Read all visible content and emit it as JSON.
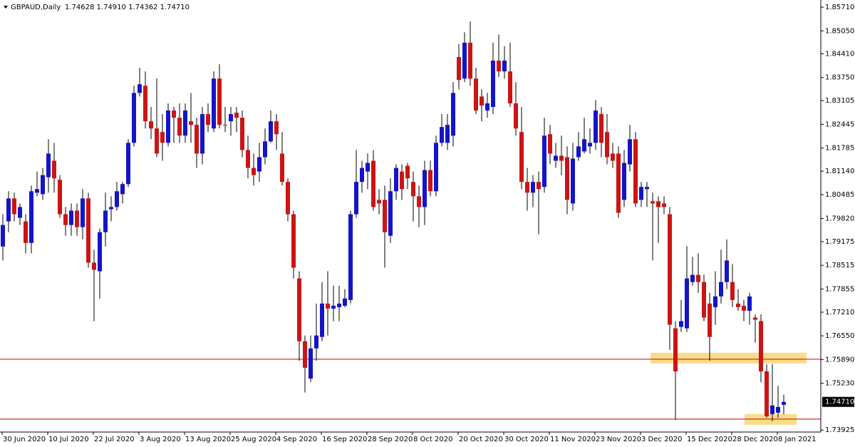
{
  "chart_data": {
    "type": "candlestick",
    "title": "GBPAUD,Daily",
    "header": "1.74628 1.74910 1.74362 1.74710",
    "up_color": "#1414c8",
    "down_color": "#cc1414",
    "ylim": [
      1.7387,
      1.8591
    ],
    "yticks": [
      {
        "value": 1.8571,
        "label": "1.85710"
      },
      {
        "value": 1.8505,
        "label": "1.85050"
      },
      {
        "value": 1.8441,
        "label": "1.84410"
      },
      {
        "value": 1.8375,
        "label": "1.83750"
      },
      1.83105,
      1.82445,
      1.81785,
      {
        "value": 1.8114,
        "label": "1.81140"
      },
      1.80485,
      {
        "value": 1.7982,
        "label": "1.79820"
      },
      1.79175,
      1.78515,
      1.77855,
      {
        "value": 1.7721,
        "label": "1.77210"
      },
      {
        "value": 1.7655,
        "label": "1.76550"
      },
      {
        "value": 1.7589,
        "label": "1.75890"
      },
      {
        "value": 1.7523,
        "label": "1.75230"
      },
      1.73925
    ],
    "last_price": {
      "value": 1.7471,
      "label": "1.74710"
    },
    "levels": [
      1.759,
      1.7423
    ],
    "level_color": "#cc0000",
    "zones": [
      [
        1.7578,
        1.7608
      ],
      [
        1.7407,
        1.7437
      ]
    ],
    "zone_color": "#f7d774",
    "categories": [
      "30 Jun 2020",
      null,
      null,
      null,
      null,
      null,
      null,
      null,
      "10 Jul 2020",
      null,
      null,
      null,
      null,
      null,
      null,
      null,
      "22 Jul 2020",
      null,
      null,
      null,
      null,
      null,
      null,
      null,
      "3 Aug 2020",
      null,
      null,
      null,
      null,
      null,
      null,
      null,
      "13 Aug 2020",
      null,
      null,
      null,
      null,
      null,
      null,
      null,
      "25 Aug 2020",
      null,
      null,
      null,
      null,
      null,
      null,
      null,
      "4 Sep 2020",
      null,
      null,
      null,
      null,
      null,
      null,
      null,
      "16 Sep 2020",
      null,
      null,
      null,
      null,
      null,
      null,
      null,
      "28 Sep 2020",
      null,
      null,
      null,
      null,
      null,
      null,
      null,
      "8 Oct 2020",
      null,
      null,
      null,
      null,
      null,
      null,
      null,
      "20 Oct 2020",
      null,
      null,
      null,
      null,
      null,
      null,
      null,
      "30 Oct 2020",
      null,
      null,
      null,
      null,
      null,
      null,
      null,
      "11 Nov 2020",
      null,
      null,
      null,
      null,
      null,
      null,
      null,
      "23 Nov 2020",
      null,
      null,
      null,
      null,
      null,
      null,
      null,
      "3 Dec 2020",
      null,
      null,
      null,
      null,
      null,
      null,
      null,
      "15 Dec 2020",
      null,
      null,
      null,
      null,
      null,
      null,
      null,
      "28 Dec 2020",
      null,
      null,
      null,
      null,
      null,
      null,
      null,
      "8 Jan 2021",
      null
    ],
    "ohlc": [
      [
        1.7904,
        1.7994,
        1.7865,
        1.7964
      ],
      [
        1.7974,
        1.8058,
        1.7944,
        1.8038
      ],
      [
        1.8038,
        1.8054,
        1.7974,
        1.7994
      ],
      [
        1.7984,
        1.8024,
        1.7964,
        1.8014
      ],
      [
        1.7974,
        1.7994,
        1.7885,
        1.7914
      ],
      [
        1.7914,
        1.8074,
        1.7885,
        1.8058
      ],
      [
        1.8054,
        1.8113,
        1.8044,
        1.8064
      ],
      [
        1.805,
        1.8123,
        1.8034,
        1.8103
      ],
      [
        1.8097,
        1.8203,
        1.8054,
        1.8163
      ],
      [
        1.8143,
        1.8193,
        1.8054,
        1.8094
      ],
      [
        1.809,
        1.8103,
        1.7984,
        1.7994
      ],
      [
        1.7994,
        1.8014,
        1.7934,
        1.7964
      ],
      [
        1.7964,
        1.8024,
        1.7934,
        1.8004
      ],
      [
        1.8004,
        1.8024,
        1.7934,
        1.7958
      ],
      [
        1.7958,
        1.8064,
        1.7924,
        1.8038
      ],
      [
        1.8038,
        1.8054,
        1.7845,
        1.7859
      ],
      [
        1.7859,
        1.7895,
        1.7696,
        1.7839
      ],
      [
        1.7835,
        1.7954,
        1.7759,
        1.7944
      ],
      [
        1.7944,
        1.8054,
        1.7904,
        1.8004
      ],
      [
        1.8008,
        1.8044,
        1.7974,
        1.8014
      ],
      [
        1.8014,
        1.8084,
        1.8004,
        1.8058
      ],
      [
        1.805,
        1.8084,
        1.8024,
        1.8078
      ],
      [
        1.8078,
        1.8203,
        1.807,
        1.8193
      ],
      [
        1.8193,
        1.8352,
        1.8183,
        1.8332
      ],
      [
        1.8332,
        1.8402,
        1.8322,
        1.8356
      ],
      [
        1.8352,
        1.8392,
        1.8233,
        1.8253
      ],
      [
        1.8253,
        1.8293,
        1.8203,
        1.8233
      ],
      [
        1.8233,
        1.8372,
        1.8153,
        1.8163
      ],
      [
        1.8223,
        1.8273,
        1.8143,
        1.8193
      ],
      [
        1.8193,
        1.8303,
        1.8183,
        1.8283
      ],
      [
        1.8283,
        1.8293,
        1.8193,
        1.8263
      ],
      [
        1.8263,
        1.8303,
        1.8193,
        1.8213
      ],
      [
        1.8213,
        1.8303,
        1.8193,
        1.8283
      ],
      [
        1.8253,
        1.8332,
        1.8193,
        1.8243
      ],
      [
        1.8243,
        1.8263,
        1.8123,
        1.8163
      ],
      [
        1.8163,
        1.8293,
        1.8133,
        1.8273
      ],
      [
        1.8273,
        1.8303,
        1.8223,
        1.8243
      ],
      [
        1.8233,
        1.8392,
        1.8223,
        1.8372
      ],
      [
        1.8372,
        1.8412,
        1.8233,
        1.8243
      ],
      [
        1.8243,
        1.8293,
        1.8223,
        1.8241
      ],
      [
        1.8253,
        1.8293,
        1.8213,
        1.8273
      ],
      [
        1.8277,
        1.8293,
        1.8223,
        1.8263
      ],
      [
        1.8263,
        1.8283,
        1.8153,
        1.8173
      ],
      [
        1.8173,
        1.8213,
        1.8094,
        1.8123
      ],
      [
        1.8123,
        1.8163,
        1.8074,
        1.8103
      ],
      [
        1.8113,
        1.8193,
        1.8084,
        1.8153
      ],
      [
        1.8153,
        1.8233,
        1.8133,
        1.8197
      ],
      [
        1.8197,
        1.8283,
        1.8193,
        1.8253
      ],
      [
        1.8253,
        1.8273,
        1.8173,
        1.8217
      ],
      [
        1.8163,
        1.8223,
        1.8074,
        1.8084
      ],
      [
        1.8084,
        1.8094,
        1.7974,
        1.7994
      ],
      [
        1.7994,
        1.8004,
        1.7815,
        1.7845
      ],
      [
        1.7815,
        1.7835,
        1.7586,
        1.764
      ],
      [
        1.764,
        1.7656,
        1.7497,
        1.7566
      ],
      [
        1.7536,
        1.7656,
        1.7526,
        1.762
      ],
      [
        1.762,
        1.7745,
        1.7586,
        1.7656
      ],
      [
        1.7652,
        1.7805,
        1.764,
        1.7745
      ],
      [
        1.7745,
        1.7835,
        1.7656,
        1.7731
      ],
      [
        1.7731,
        1.7795,
        1.7696,
        1.7739
      ],
      [
        1.7735,
        1.7795,
        1.7696,
        1.7745
      ],
      [
        1.7739,
        1.7785,
        1.7735,
        1.7759
      ],
      [
        1.7755,
        1.8004,
        1.7745,
        1.7994
      ],
      [
        1.7994,
        1.8173,
        1.7984,
        1.8084
      ],
      [
        1.8084,
        1.8143,
        1.8054,
        1.8123
      ],
      [
        1.8113,
        1.8163,
        1.8064,
        1.8137
      ],
      [
        1.8143,
        1.8173,
        1.8004,
        1.8014
      ],
      [
        1.8034,
        1.8064,
        1.7994,
        1.8024
      ],
      [
        1.8034,
        1.8074,
        1.7845,
        1.7944
      ],
      [
        1.7934,
        1.8094,
        1.7914,
        1.8058
      ],
      [
        1.8058,
        1.8133,
        1.8034,
        1.8123
      ],
      [
        1.8113,
        1.8133,
        1.8034,
        1.8064
      ],
      [
        1.8129,
        1.8137,
        1.8064,
        1.8094
      ],
      [
        1.8084,
        1.8113,
        1.7974,
        1.8044
      ],
      [
        1.8044,
        1.8074,
        1.7958,
        1.8014
      ],
      [
        1.8014,
        1.8143,
        1.7964,
        1.8117
      ],
      [
        1.8117,
        1.8143,
        1.8044,
        1.8058
      ],
      [
        1.8058,
        1.8213,
        1.8044,
        1.8193
      ],
      [
        1.8193,
        1.8273,
        1.8183,
        1.8237
      ],
      [
        1.8193,
        1.8273,
        1.8173,
        1.8243
      ],
      [
        1.8213,
        1.8362,
        1.8183,
        1.8332
      ],
      [
        1.8432,
        1.8468,
        1.8342,
        1.8368
      ],
      [
        1.8372,
        1.8501,
        1.8362,
        1.8472
      ],
      [
        1.8472,
        1.8531,
        1.8352,
        1.8372
      ],
      [
        1.8372,
        1.8402,
        1.8273,
        1.8283
      ],
      [
        1.8322,
        1.8342,
        1.8253,
        1.8297
      ],
      [
        1.8283,
        1.8332,
        1.8263,
        1.8303
      ],
      [
        1.8293,
        1.8472,
        1.8273,
        1.8422
      ],
      [
        1.8422,
        1.8495,
        1.8376,
        1.8392
      ],
      [
        1.8392,
        1.8462,
        1.8372,
        1.8422
      ],
      [
        1.8392,
        1.8472,
        1.8293,
        1.8303
      ],
      [
        1.8303,
        1.8362,
        1.8213,
        1.8233
      ],
      [
        1.8223,
        1.8293,
        1.8064,
        1.8084
      ],
      [
        1.8084,
        1.8123,
        1.8004,
        1.8054
      ],
      [
        1.8054,
        1.8103,
        1.8014,
        1.8084
      ],
      [
        1.8084,
        1.8113,
        1.7938,
        1.8064
      ],
      [
        1.807,
        1.8263,
        1.8054,
        1.8213
      ],
      [
        1.8217,
        1.8243,
        1.8133,
        1.8163
      ],
      [
        1.8143,
        1.8193,
        1.8123,
        1.8157
      ],
      [
        1.8157,
        1.8213,
        1.8103,
        1.8143
      ],
      [
        1.8153,
        1.8183,
        1.7994,
        1.8034
      ],
      [
        1.8024,
        1.8193,
        1.8004,
        1.8149
      ],
      [
        1.8153,
        1.8223,
        1.8143,
        1.8183
      ],
      [
        1.8169,
        1.8263,
        1.8163,
        1.8203
      ],
      [
        1.8183,
        1.8233,
        1.8163,
        1.8193
      ],
      [
        1.8193,
        1.8312,
        1.8173,
        1.8283
      ],
      [
        1.8273,
        1.8293,
        1.8153,
        1.8193
      ],
      [
        1.8223,
        1.8273,
        1.8133,
        1.8153
      ],
      [
        1.8163,
        1.8193,
        1.8123,
        1.8143
      ],
      [
        1.8163,
        1.8183,
        1.7984,
        1.7998
      ],
      [
        1.8034,
        1.8173,
        1.8014,
        1.8137
      ],
      [
        1.8133,
        1.8243,
        1.8113,
        1.8203
      ],
      [
        1.8203,
        1.8223,
        1.8014,
        1.8024
      ],
      [
        1.8034,
        1.8084,
        1.8014,
        1.807
      ],
      [
        1.8064,
        1.8084,
        1.8014,
        1.807
      ],
      [
        1.803,
        1.8054,
        1.7865,
        1.8024
      ],
      [
        1.803,
        1.8044,
        1.7914,
        1.8014
      ],
      [
        1.8024,
        1.8044,
        1.7994,
        1.8014
      ],
      [
        1.7994,
        1.8014,
        1.7616,
        1.7686
      ],
      [
        1.7676,
        1.7696,
        1.7421,
        1.7556
      ],
      [
        1.768,
        1.7755,
        1.7666,
        1.7696
      ],
      [
        1.7676,
        1.7905,
        1.7666,
        1.7815
      ],
      [
        1.7805,
        1.7875,
        1.7795,
        1.7825
      ],
      [
        1.7825,
        1.7885,
        1.7775,
        1.7805
      ],
      [
        1.7805,
        1.7825,
        1.7696,
        1.7706
      ],
      [
        1.7745,
        1.7775,
        1.7586,
        1.7652
      ],
      [
        1.7735,
        1.7835,
        1.7686,
        1.7765
      ],
      [
        1.7765,
        1.7895,
        1.7745,
        1.7805
      ],
      [
        1.7805,
        1.7924,
        1.7785,
        1.7865
      ],
      [
        1.7805,
        1.7855,
        1.7735,
        1.7755
      ],
      [
        1.7745,
        1.7785,
        1.7725,
        1.7735
      ],
      [
        1.7739,
        1.7755,
        1.7696,
        1.7725
      ],
      [
        1.7725,
        1.7775,
        1.7686,
        1.7765
      ],
      [
        1.7706,
        1.7715,
        1.7636,
        1.77
      ],
      [
        1.7696,
        1.7715,
        1.7526,
        1.7556
      ],
      [
        1.7556,
        1.7576,
        1.7427,
        1.7431
      ],
      [
        1.7437,
        1.7576,
        1.7417,
        1.7461
      ],
      [
        1.7441,
        1.7516,
        1.7427,
        1.7457
      ],
      [
        1.74628,
        1.7491,
        1.74362,
        1.7471
      ]
    ]
  }
}
